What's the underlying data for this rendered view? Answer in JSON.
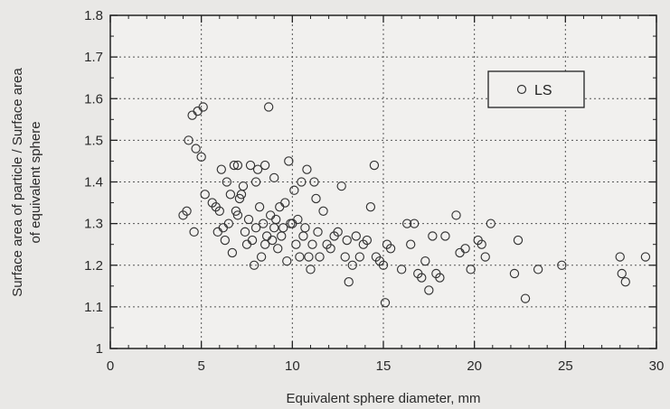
{
  "chart_data": {
    "type": "scatter",
    "xlabel": "Equivalent sphere diameter, mm",
    "ylabel_line1": "Surface area of particle / Surface area",
    "ylabel_line2": "of equivalent sphere",
    "xlim": [
      0,
      30
    ],
    "ylim": [
      1,
      1.8
    ],
    "xticks": [
      0,
      5,
      10,
      15,
      20,
      25,
      30
    ],
    "yticks": [
      1,
      1.1,
      1.2,
      1.3,
      1.4,
      1.5,
      1.6,
      1.7,
      1.8
    ],
    "xtick_labels": [
      "0",
      "5",
      "10",
      "15",
      "20",
      "25",
      "30"
    ],
    "ytick_labels": [
      "1",
      "1.1",
      "1.2",
      "1.3",
      "1.4",
      "1.5",
      "1.6",
      "1.7",
      "1.8"
    ],
    "grid": true,
    "legend_position": "top-right",
    "series": [
      {
        "name": "LS",
        "marker": "open-circle",
        "color": "#333333",
        "points": [
          [
            4.0,
            1.32
          ],
          [
            4.2,
            1.33
          ],
          [
            4.3,
            1.5
          ],
          [
            4.5,
            1.56
          ],
          [
            4.6,
            1.28
          ],
          [
            4.7,
            1.48
          ],
          [
            4.8,
            1.57
          ],
          [
            5.0,
            1.46
          ],
          [
            5.1,
            1.58
          ],
          [
            5.2,
            1.37
          ],
          [
            5.6,
            1.35
          ],
          [
            5.8,
            1.34
          ],
          [
            5.9,
            1.28
          ],
          [
            6.0,
            1.33
          ],
          [
            6.1,
            1.43
          ],
          [
            6.2,
            1.29
          ],
          [
            6.3,
            1.26
          ],
          [
            6.4,
            1.4
          ],
          [
            6.5,
            1.3
          ],
          [
            6.6,
            1.37
          ],
          [
            6.7,
            1.23
          ],
          [
            6.8,
            1.44
          ],
          [
            6.9,
            1.33
          ],
          [
            7.0,
            1.32
          ],
          [
            7.0,
            1.44
          ],
          [
            7.1,
            1.36
          ],
          [
            7.2,
            1.37
          ],
          [
            7.3,
            1.39
          ],
          [
            7.4,
            1.28
          ],
          [
            7.5,
            1.25
          ],
          [
            7.6,
            1.31
          ],
          [
            7.7,
            1.44
          ],
          [
            7.8,
            1.26
          ],
          [
            7.9,
            1.2
          ],
          [
            8.0,
            1.4
          ],
          [
            8.0,
            1.29
          ],
          [
            8.1,
            1.43
          ],
          [
            8.2,
            1.34
          ],
          [
            8.3,
            1.22
          ],
          [
            8.4,
            1.3
          ],
          [
            8.5,
            1.44
          ],
          [
            8.5,
            1.25
          ],
          [
            8.6,
            1.27
          ],
          [
            8.7,
            1.58
          ],
          [
            8.8,
            1.32
          ],
          [
            8.9,
            1.26
          ],
          [
            9.0,
            1.29
          ],
          [
            9.0,
            1.41
          ],
          [
            9.1,
            1.31
          ],
          [
            9.2,
            1.24
          ],
          [
            9.3,
            1.34
          ],
          [
            9.4,
            1.27
          ],
          [
            9.5,
            1.29
          ],
          [
            9.6,
            1.35
          ],
          [
            9.7,
            1.21
          ],
          [
            9.8,
            1.45
          ],
          [
            9.9,
            1.3
          ],
          [
            10.0,
            1.3
          ],
          [
            10.1,
            1.38
          ],
          [
            10.2,
            1.25
          ],
          [
            10.3,
            1.31
          ],
          [
            10.4,
            1.22
          ],
          [
            10.5,
            1.4
          ],
          [
            10.6,
            1.27
          ],
          [
            10.7,
            1.29
          ],
          [
            10.8,
            1.43
          ],
          [
            10.9,
            1.22
          ],
          [
            11.0,
            1.19
          ],
          [
            11.1,
            1.25
          ],
          [
            11.2,
            1.4
          ],
          [
            11.3,
            1.36
          ],
          [
            11.4,
            1.28
          ],
          [
            11.5,
            1.22
          ],
          [
            11.7,
            1.33
          ],
          [
            11.9,
            1.25
          ],
          [
            12.1,
            1.24
          ],
          [
            12.3,
            1.27
          ],
          [
            12.5,
            1.28
          ],
          [
            12.7,
            1.39
          ],
          [
            12.9,
            1.22
          ],
          [
            13.0,
            1.26
          ],
          [
            13.1,
            1.16
          ],
          [
            13.3,
            1.2
          ],
          [
            13.5,
            1.27
          ],
          [
            13.7,
            1.22
          ],
          [
            13.9,
            1.25
          ],
          [
            14.1,
            1.26
          ],
          [
            14.3,
            1.34
          ],
          [
            14.5,
            1.44
          ],
          [
            14.6,
            1.22
          ],
          [
            14.8,
            1.21
          ],
          [
            15.0,
            1.2
          ],
          [
            15.1,
            1.11
          ],
          [
            15.2,
            1.25
          ],
          [
            15.4,
            1.24
          ],
          [
            16.0,
            1.19
          ],
          [
            16.3,
            1.3
          ],
          [
            16.5,
            1.25
          ],
          [
            16.7,
            1.3
          ],
          [
            16.9,
            1.18
          ],
          [
            17.1,
            1.17
          ],
          [
            17.3,
            1.21
          ],
          [
            17.5,
            1.14
          ],
          [
            17.7,
            1.27
          ],
          [
            17.9,
            1.18
          ],
          [
            18.1,
            1.17
          ],
          [
            18.4,
            1.27
          ],
          [
            19.0,
            1.32
          ],
          [
            19.2,
            1.23
          ],
          [
            19.5,
            1.24
          ],
          [
            19.8,
            1.19
          ],
          [
            20.2,
            1.26
          ],
          [
            20.4,
            1.25
          ],
          [
            20.6,
            1.22
          ],
          [
            20.9,
            1.3
          ],
          [
            22.2,
            1.18
          ],
          [
            22.4,
            1.26
          ],
          [
            22.8,
            1.12
          ],
          [
            23.5,
            1.19
          ],
          [
            24.8,
            1.2
          ],
          [
            28.0,
            1.22
          ],
          [
            28.1,
            1.18
          ],
          [
            28.3,
            1.16
          ],
          [
            29.4,
            1.22
          ]
        ]
      }
    ]
  }
}
